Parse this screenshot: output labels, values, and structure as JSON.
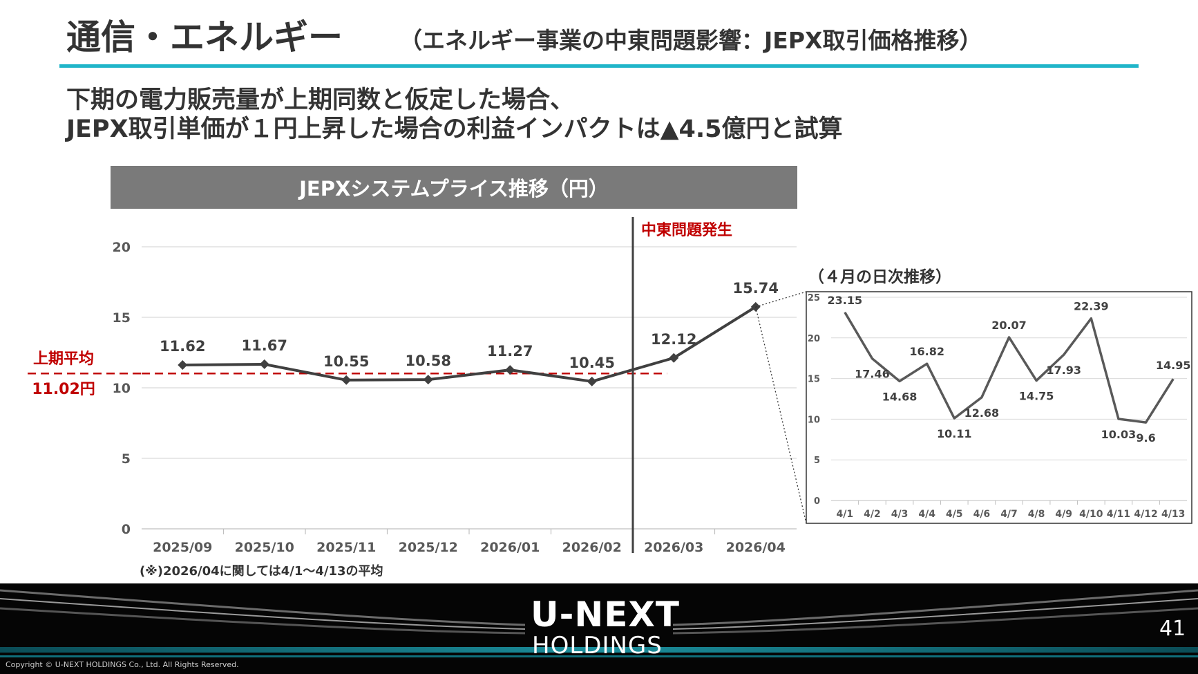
{
  "header": {
    "title": "通信・エネルギー",
    "subtitle": "（エネルギー事業の中東問題影響：JEPX取引価格推移）",
    "rule_color": "#1fb5c9"
  },
  "headline": {
    "line1": "下期の電力販売量が上期同数と仮定した場合、",
    "line2": "JEPX取引単価が１円上昇した場合の利益インパクトは▲4.5億円と試算"
  },
  "chart_banner": "JEPXシステムプライス推移（円）",
  "chart_data": [
    {
      "type": "line",
      "categories": [
        "2025/09",
        "2025/10",
        "2025/11",
        "2025/12",
        "2026/01",
        "2026/02",
        "2026/03",
        "2026/04"
      ],
      "values": [
        11.62,
        11.67,
        10.55,
        10.58,
        11.27,
        10.45,
        12.12,
        15.74
      ],
      "yticks": [
        0,
        5,
        10,
        15,
        20
      ],
      "ylim": [
        0,
        20
      ],
      "grid": true,
      "line_color": "#404040",
      "reference_line": {
        "value": 11.02,
        "label": "上期平均",
        "value_label": "11.02円",
        "color": "#c00000"
      },
      "event_marker": {
        "after_category": "2026/02",
        "label": "中東問題発生",
        "color": "#c00000"
      },
      "footnote": "(※)2026/04に関しては4/1～4/13の平均"
    },
    {
      "type": "line",
      "title": "（４月の日次推移）",
      "categories": [
        "4/1",
        "4/2",
        "4/3",
        "4/4",
        "4/5",
        "4/6",
        "4/7",
        "4/8",
        "4/9",
        "4/10",
        "4/11",
        "4/12",
        "4/13"
      ],
      "values": [
        23.15,
        17.46,
        14.68,
        16.82,
        10.11,
        12.68,
        20.07,
        14.75,
        17.93,
        22.39,
        10.03,
        9.6,
        14.95
      ],
      "yticks": [
        0,
        5,
        10,
        15,
        20,
        25
      ],
      "ylim": [
        0,
        25
      ],
      "grid": true,
      "line_color": "#595959"
    }
  ],
  "footer": {
    "logo_top": "U-NEXT",
    "logo_bottom": "HOLDINGS",
    "page_number": "41",
    "copyright": "Copyright © U-NEXT HOLDINGS Co., Ltd. All Rights Reserved."
  }
}
